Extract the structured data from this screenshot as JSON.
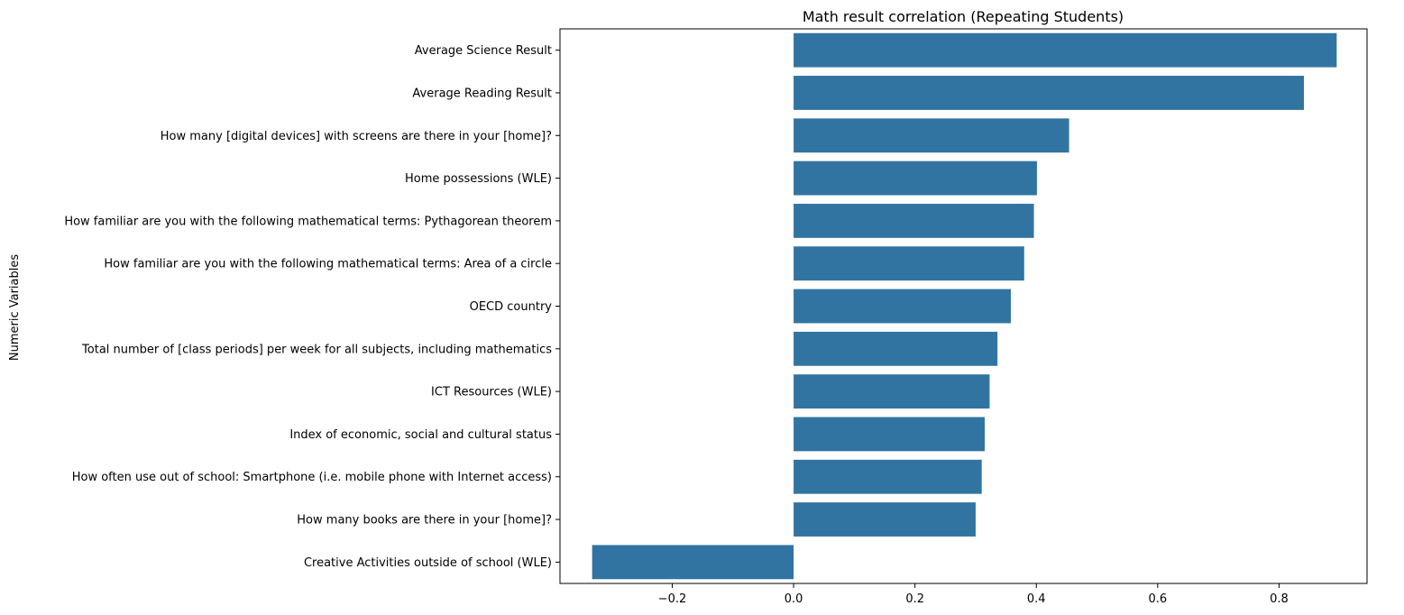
{
  "chart_data": {
    "type": "bar",
    "orientation": "horizontal",
    "title": "Math result correlation (Repeating Students)",
    "xlabel": "",
    "ylabel": "Numeric Variables",
    "xlim": [
      -0.385,
      0.945
    ],
    "xticks": [
      -0.2,
      0.0,
      0.2,
      0.4,
      0.6,
      0.8
    ],
    "xtick_labels": [
      "−0.2",
      "0.0",
      "0.2",
      "0.4",
      "0.6",
      "0.8"
    ],
    "bar_color": "#3274a1",
    "grid": false,
    "categories": [
      "Average Science Result",
      "Average Reading Result",
      "How many [digital devices] with screens are there in your [home]?",
      "Home possessions (WLE)",
      "How familiar are you with the following mathematical terms: Pythagorean theorem",
      "How familiar are you with the following mathematical terms: Area of a circle",
      "OECD country",
      "Total number of [class periods] per week for all subjects, including mathematics",
      "ICT Resources (WLE)",
      "Index of economic, social and cultural status",
      "How often use out of school: Smartphone (i.e. mobile phone with Internet access)",
      "How many books are there in your [home]?",
      "Creative Activities outside of school (WLE)"
    ],
    "values": [
      0.895,
      0.841,
      0.454,
      0.401,
      0.396,
      0.38,
      0.358,
      0.336,
      0.323,
      0.315,
      0.31,
      0.3,
      -0.332
    ]
  }
}
